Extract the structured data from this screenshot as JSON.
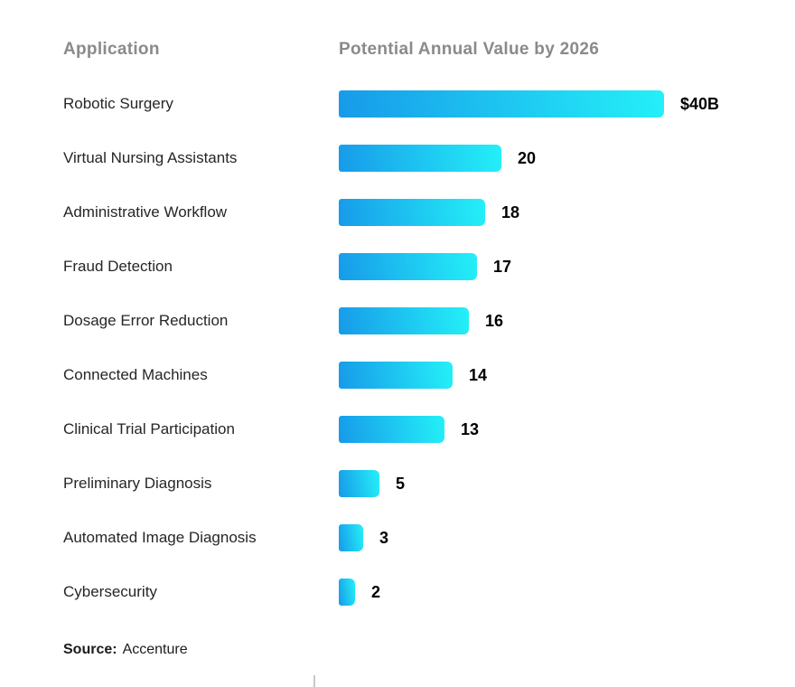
{
  "table_header": {
    "col_application": "Application",
    "col_value": "Potential Annual Value by 2026"
  },
  "source": {
    "prefix": "Source:",
    "name": "Accenture"
  },
  "colors": {
    "bar_gradient_start": "#179ae9",
    "bar_gradient_end": "#24f0f8",
    "header_text": "#8a8a8e",
    "label_text": "#262626",
    "value_text": "#000000"
  },
  "chart_data": {
    "type": "bar",
    "orientation": "horizontal",
    "title": "Potential Annual Value by 2026",
    "xlabel": "Application",
    "categories": [
      "Robotic Surgery",
      "Virtual Nursing Assistants",
      "Administrative Workflow",
      "Fraud Detection",
      "Dosage Error Reduction",
      "Connected Machines",
      "Clinical Trial Participation",
      "Preliminary Diagnosis",
      "Automated Image Diagnosis",
      "Cybersecurity"
    ],
    "values": [
      40,
      20,
      18,
      17,
      16,
      14,
      13,
      5,
      3,
      2
    ],
    "value_labels": [
      "$40B",
      "20",
      "18",
      "17",
      "16",
      "14",
      "13",
      "5",
      "3",
      "2"
    ],
    "xlim": [
      0,
      40
    ],
    "grid": false,
    "legend": false
  }
}
